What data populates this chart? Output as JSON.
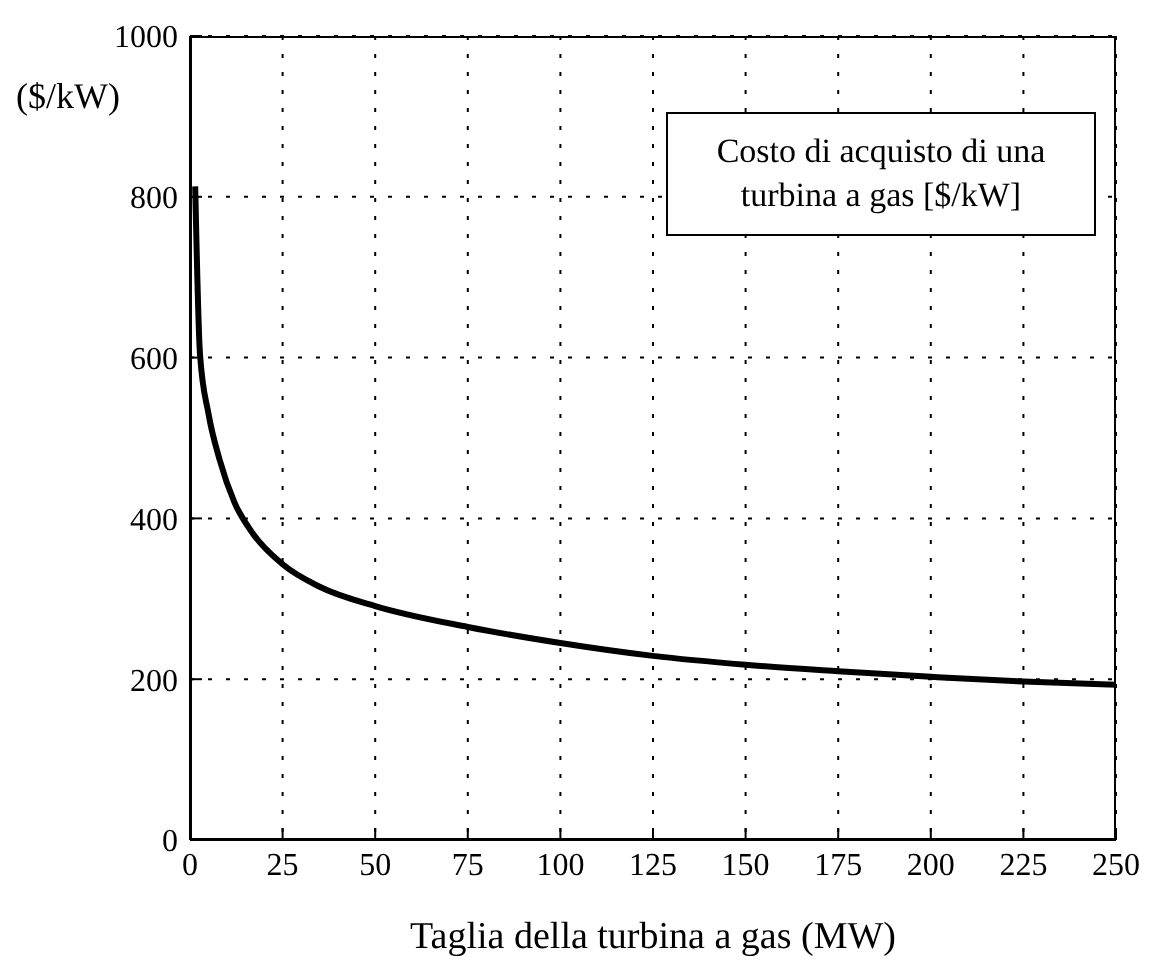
{
  "chart_data": {
    "type": "line",
    "xlabel": "Taglia della turbina a gas (MW)",
    "ylabel": "($/kW)",
    "annotations": [
      "Costo di acquisto di una turbina a gas [$/kW]"
    ],
    "x": [
      1.4,
      2.7,
      5,
      8,
      12,
      17,
      25,
      35,
      50,
      75,
      100,
      125,
      150,
      175,
      200,
      225,
      250
    ],
    "series": [
      {
        "color": "#000000",
        "values": [
          813,
          604,
          530,
          473,
          420,
          381,
          343,
          315,
          291,
          265,
          245,
          229,
          218,
          210,
          203,
          197,
          193
        ]
      }
    ],
    "xlim": [
      0,
      250
    ],
    "xticks": [
      0,
      25,
      50,
      75,
      100,
      125,
      150,
      175,
      200,
      225,
      250
    ],
    "ylim": [
      0,
      1000
    ],
    "yticks": [
      0,
      200,
      400,
      600,
      800,
      1000
    ],
    "grid": true,
    "marker": "none",
    "line_style": "solid"
  }
}
